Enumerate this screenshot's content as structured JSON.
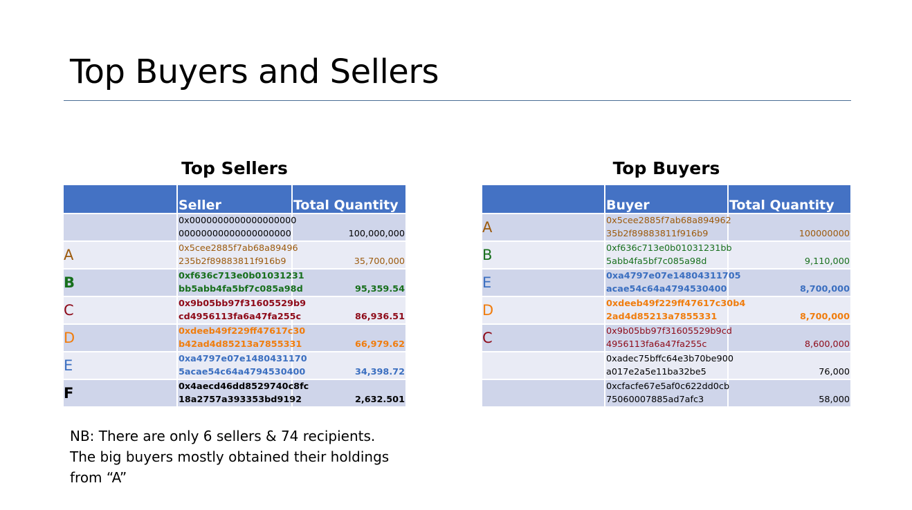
{
  "title": "Top Buyers and Sellers",
  "colors": {
    "header": "#4472c4",
    "row_dark": "#cfd5ea",
    "row_light": "#e9ebf5",
    "A": "#9c5a0c",
    "B": "#176f1c",
    "C": "#8e0a18",
    "D": "#f07d0e",
    "E": "#3b6fc0",
    "F": "#000000"
  },
  "sellers": {
    "heading": "Top Sellers",
    "columns": [
      "",
      "Seller",
      "Total Quantity"
    ],
    "rows": [
      {
        "label": "",
        "addr1": "0x0000000000000000000",
        "addr2": "00000000000000000000",
        "qty": "100,000,000",
        "color": "black",
        "bold": false
      },
      {
        "label": "A",
        "addr1": "0x5cee2885f7ab68a89496",
        "addr2": "235b2f89883811f916b9",
        "qty": "35,700,000",
        "color": "brown",
        "bold": false
      },
      {
        "label": "B",
        "addr1": "0xf636c713e0b01031231",
        "addr2": "bb5abb4fa5bf7c085a98d",
        "qty": "95,359.54",
        "color": "green",
        "bold": true
      },
      {
        "label": "C",
        "addr1": "0x9b05bb97f31605529b9",
        "addr2": "cd4956113fa6a47fa255c",
        "qty": "86,936.51",
        "color": "red",
        "bold": true
      },
      {
        "label": "D",
        "addr1": "0xdeeb49f229ff47617c30",
        "addr2": "b42ad4d85213a7855331",
        "qty": "66,979.62",
        "color": "orange",
        "bold": true
      },
      {
        "label": "E",
        "addr1": "0xa4797e07e1480431170",
        "addr2": "5acae54c64a4794530400",
        "qty": "34,398.72",
        "color": "blue",
        "bold": true
      },
      {
        "label": "F",
        "addr1": "0x4aecd46dd8529740c8fc",
        "addr2": "18a2757a393353bd9192",
        "qty": "2,632.501",
        "color": "black",
        "bold": true
      }
    ]
  },
  "buyers": {
    "heading": "Top Buyers",
    "columns": [
      "",
      "Buyer",
      "Total Quantity"
    ],
    "rows": [
      {
        "label": "A",
        "addr1": "0x5cee2885f7ab68a894962",
        "addr2": "35b2f89883811f916b9",
        "qty": "100000000",
        "color": "brown",
        "bold": false
      },
      {
        "label": "B",
        "addr1": "0xf636c713e0b01031231bb",
        "addr2": "5abb4fa5bf7c085a98d",
        "qty": "9,110,000",
        "color": "green",
        "bold": false
      },
      {
        "label": "E",
        "addr1": "0xa4797e07e14804311705",
        "addr2": "acae54c64a4794530400",
        "qty": "8,700,000",
        "color": "blue",
        "bold": true
      },
      {
        "label": "D",
        "addr1": "0xdeeb49f229ff47617c30b4",
        "addr2": "2ad4d85213a7855331",
        "qty": "8,700,000",
        "color": "orange",
        "bold": true
      },
      {
        "label": "C",
        "addr1": "0x9b05bb97f31605529b9cd",
        "addr2": "4956113fa6a47fa255c",
        "qty": "8,600,000",
        "color": "red",
        "bold": false
      },
      {
        "label": "",
        "addr1": "0xadec75bffc64e3b70be900",
        "addr2": "a017e2a5e11ba32be5",
        "qty": "76,000",
        "color": "black",
        "bold": false
      },
      {
        "label": "",
        "addr1": "0xcfacfe67e5af0c622dd0cb",
        "addr2": "75060007885ad7afc3",
        "qty": "58,000",
        "color": "black",
        "bold": false
      }
    ]
  },
  "note": {
    "lines": [
      "NB: There are only 6 sellers & 74 recipients.",
      "The big buyers mostly obtained their holdings",
      "from “A”"
    ]
  }
}
